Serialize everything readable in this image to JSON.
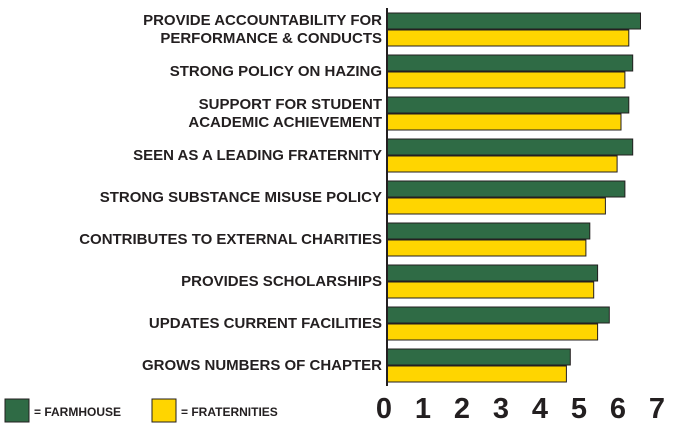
{
  "chart_data": {
    "type": "barh",
    "categories": [
      "PROVIDE ACCOUNTABILITY FOR\nPERFORMANCE & CONDUCTS",
      "STRONG POLICY ON HAZING",
      "SUPPORT FOR STUDENT\nACADEMIC ACHIEVEMENT",
      "SEEN AS A LEADING FRATERNITY",
      "STRONG SUBSTANCE MISUSE POLICY",
      "CONTRIBUTES TO EXTERNAL CHARITIES",
      "PROVIDES SCHOLARSHIPS",
      "UPDATES CURRENT FACILITIES",
      "GROWS NUMBERS OF CHAPTER"
    ],
    "series": [
      {
        "name": "= FARMHOUSE",
        "color": "#2f6b45",
        "values": [
          6.5,
          6.3,
          6.2,
          6.3,
          6.1,
          5.2,
          5.4,
          5.7,
          4.7
        ]
      },
      {
        "name": "= FRATERNITIES",
        "color": "#ffd500",
        "values": [
          6.2,
          6.1,
          6.0,
          5.9,
          5.6,
          5.1,
          5.3,
          5.4,
          4.6
        ]
      }
    ],
    "xlim": [
      0,
      7
    ],
    "xticks": [
      0,
      1,
      2,
      3,
      4,
      5,
      6,
      7
    ],
    "grid": false,
    "legend": "bottom-left"
  }
}
